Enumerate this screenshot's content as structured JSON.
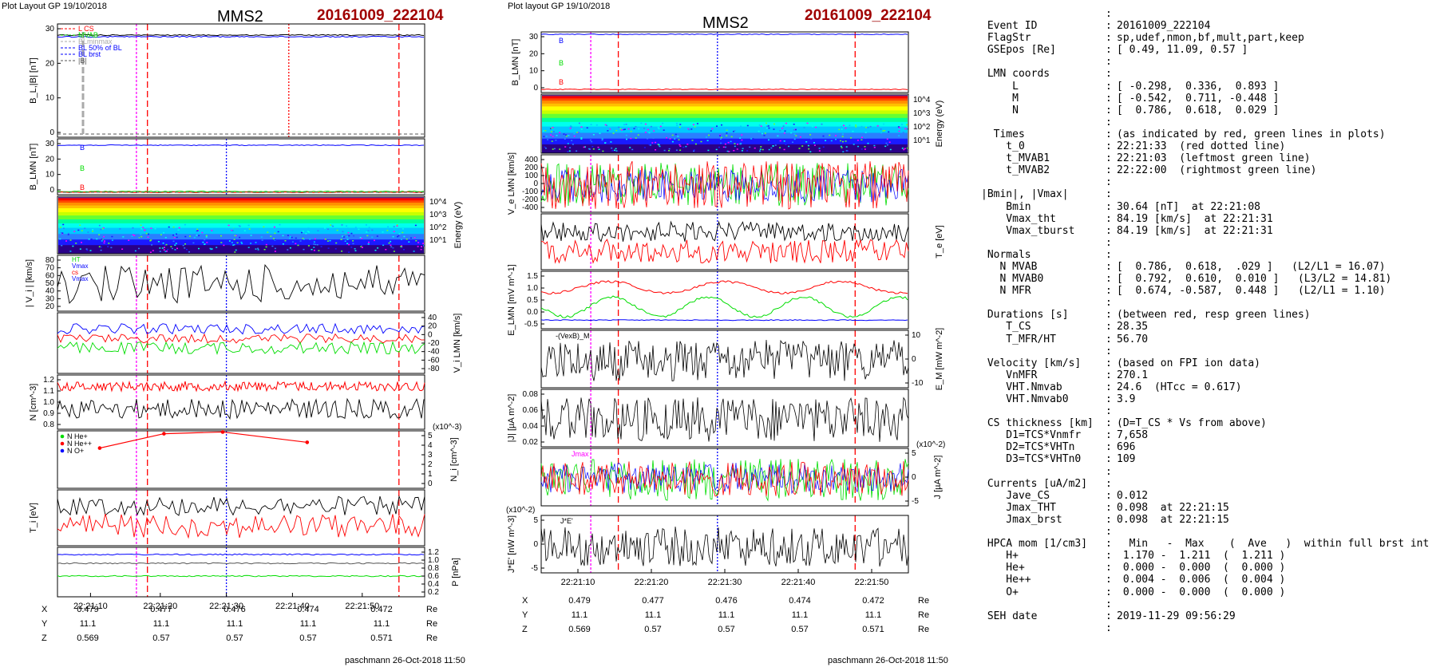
{
  "left_figure": {
    "header": "Plot Layout GP 19/10/2018",
    "spacecraft": "MMS2",
    "event": "20161009_222104",
    "footer": "paschmann 26-Oct-2018 11:50",
    "time_ticks": [
      "22:21:10",
      "22:21:20",
      "22:21:30",
      "22:21:40",
      "22:21:50"
    ],
    "ephem": {
      "rows": [
        {
          "name": "X",
          "values": [
            "0.479",
            "0.477",
            "0.476",
            "0.474",
            "0.472"
          ],
          "unit": "Re"
        },
        {
          "name": "Y",
          "values": [
            "11.1",
            "11.1",
            "11.1",
            "11.1",
            "11.1"
          ],
          "unit": "Re"
        },
        {
          "name": "Z",
          "values": [
            "0.569",
            "0.57",
            "0.57",
            "0.57",
            "0.571"
          ],
          "unit": "Re"
        }
      ]
    }
  },
  "right_figure": {
    "header": "Plot layout GP 19/10/2018",
    "spacecraft": "MMS2",
    "event": "20161009_222104",
    "footer": "paschmann 26-Oct-2018 11:50",
    "time_ticks": [
      "22:21:10",
      "22:21:20",
      "22:21:30",
      "22:21:40",
      "22:21:50"
    ],
    "ephem": {
      "rows": [
        {
          "name": "X",
          "values": [
            "0.479",
            "0.477",
            "0.476",
            "0.474",
            "0.472"
          ],
          "unit": "Re"
        },
        {
          "name": "Y",
          "values": [
            "11.1",
            "11.1",
            "11.1",
            "11.1",
            "11.1"
          ],
          "unit": "Re"
        },
        {
          "name": "Z",
          "values": [
            "0.569",
            "0.57",
            "0.57",
            "0.57",
            "0.571"
          ],
          "unit": "Re"
        }
      ]
    }
  },
  "colors": {
    "red": "#ff0000",
    "green": "#00dd00",
    "blue": "#0000ff",
    "magenta": "#ff00ff",
    "black": "#000000",
    "title_red": "#a00000"
  },
  "chart_data": [
    {
      "type": "line",
      "panel": "left-1",
      "ylabel": "B_L,|B| [nT]",
      "ylim": [
        0,
        32
      ],
      "yticks": [
        "30",
        "20",
        "10",
        "0"
      ],
      "legend": [
        "L CS",
        "MVAB",
        "BLminmax",
        "BL 50% of BL",
        "BL brst",
        "|B|"
      ],
      "series": [
        {
          "name": "|B|",
          "level": 31
        },
        {
          "name": "B_L",
          "level": 30.6
        }
      ]
    },
    {
      "type": "line",
      "panel": "left-2",
      "ylabel": "B_LMN [nT]",
      "ylim": [
        -2,
        32
      ],
      "yticks": [
        "30",
        "20",
        "10",
        "0"
      ],
      "series": [
        {
          "name": "B_L",
          "level": 30
        },
        {
          "name": "B_M",
          "level": 0.3
        },
        {
          "name": "B_N",
          "level": 0
        }
      ]
    },
    {
      "type": "heatmap",
      "panel": "left-3",
      "ylabel": "Energy (eV)",
      "yticks": [
        "10^4",
        "10^3",
        "10^2",
        "10^1"
      ]
    },
    {
      "type": "line",
      "panel": "left-4",
      "ylabel": "| V_i | [km/s]",
      "ylim": [
        10,
        82
      ],
      "yticks": [
        "80",
        "70",
        "60",
        "50",
        "40",
        "30",
        "20"
      ],
      "legend": [
        "HT",
        "Vmax",
        "cs",
        "Vmax"
      ],
      "series": [
        {
          "name": "|Vi|",
          "range": [
            20,
            70
          ]
        }
      ]
    },
    {
      "type": "line",
      "panel": "left-5",
      "ylabel": "V_i LMN [km/s]",
      "ylim": [
        -82,
        42
      ],
      "yticks": [
        "40",
        "20",
        "0",
        "-20",
        "-40",
        "-60",
        "-80"
      ],
      "series": [
        {
          "name": "V_L",
          "range": [
            0,
            20
          ]
        },
        {
          "name": "V_M",
          "range": [
            -20,
            20
          ]
        },
        {
          "name": "V_N",
          "range": [
            -40,
            -5
          ]
        }
      ]
    },
    {
      "type": "line",
      "panel": "left-6",
      "ylabel": "N [cm^-3]",
      "ylim": [
        0.78,
        1.28
      ],
      "yticks": [
        "1.2",
        "1.1",
        "1.0",
        "0.9",
        "0.8"
      ],
      "series": [
        {
          "name": "Ne",
          "range": [
            1.15,
            1.25
          ]
        },
        {
          "name": "Ni",
          "range": [
            0.88,
            1.05
          ]
        }
      ]
    },
    {
      "type": "line",
      "panel": "left-7",
      "ylabel": "N_i [cm^-3]",
      "unit_note": "(x10^-3)",
      "ylim": [
        0,
        6
      ],
      "yticks": [
        "5",
        "4",
        "3",
        "2",
        "1",
        "0"
      ],
      "legend": [
        "N He+",
        "N He++",
        "N O+"
      ],
      "series": [
        {
          "name": "N He++",
          "x": [
            "22:21:09",
            "22:21:18",
            "22:21:30",
            "22:21:41"
          ],
          "y": [
            4.0,
            5.0,
            5.0,
            4.4
          ]
        }
      ]
    },
    {
      "type": "line",
      "panel": "left-8",
      "ylabel": "T_i [eV]",
      "series": [
        {
          "name": "T_i (black)",
          "range": [
            0.5,
            0.9
          ]
        },
        {
          "name": "T_i (red)",
          "range": [
            0.15,
            0.5
          ]
        }
      ]
    },
    {
      "type": "line",
      "panel": "left-9",
      "ylabel": "P [nPa]",
      "ylim": [
        0.2,
        1.2
      ],
      "yticks": [
        "1.2",
        "1.0",
        "0.8",
        "0.6",
        "0.4",
        "0.2"
      ],
      "series": [
        {
          "name": "P_t",
          "level": 1.15
        },
        {
          "name": "P_B",
          "level": 0.95
        },
        {
          "name": "P_e",
          "level": 0.6
        }
      ]
    },
    {
      "type": "line",
      "panel": "right-1",
      "ylabel": "B_LMN [nT]",
      "ylim": [
        -2,
        32
      ],
      "yticks": [
        "30",
        "20",
        "10",
        "0"
      ],
      "series": [
        {
          "name": "B_L",
          "level": 30
        },
        {
          "name": "B_M",
          "level": 0.3
        },
        {
          "name": "B_N",
          "level": 0
        }
      ]
    },
    {
      "type": "heatmap",
      "panel": "right-2",
      "ylabel": "Energy (eV)",
      "yticks": [
        "10^4",
        "10^3",
        "10^2",
        "10^1"
      ]
    },
    {
      "type": "line",
      "panel": "right-3",
      "ylabel": "V_e LMN [km/s]",
      "ylim": [
        -400,
        400
      ],
      "yticks": [
        "400",
        "200",
        "100",
        "0",
        "-100",
        "-200",
        "-400"
      ],
      "series": [
        {
          "name": "V_L",
          "range": [
            -150,
            150
          ]
        },
        {
          "name": "V_M",
          "range": [
            -100,
            100
          ]
        },
        {
          "name": "V_N",
          "range": [
            -200,
            200
          ]
        }
      ]
    },
    {
      "type": "line",
      "panel": "right-4",
      "ylabel": "T_e [eV]",
      "series": [
        {
          "name": "T_e para",
          "range": [
            0.55,
            0.9
          ]
        },
        {
          "name": "T_e perp",
          "range": [
            0.1,
            0.55
          ]
        }
      ]
    },
    {
      "type": "line",
      "panel": "right-5",
      "ylabel": "E_LMN [mV m^-1]",
      "ylim": [
        -0.5,
        1.6
      ],
      "yticks": [
        "1.5",
        "1.0",
        "0.5",
        "0.0",
        "-0.5"
      ],
      "series": [
        {
          "name": "E_L",
          "level": 0
        },
        {
          "name": "E_M",
          "range": [
            -0.1,
            0.7
          ]
        },
        {
          "name": "E_N",
          "range": [
            0.7,
            1.4
          ]
        }
      ]
    },
    {
      "type": "line",
      "panel": "right-6",
      "ylabel": "E_M [mW m^-2]",
      "legend": [
        "-(VexB)_M",
        "E_M"
      ],
      "yticks": [
        "10",
        "0",
        "-10"
      ],
      "series": [
        {
          "name": "E_M",
          "range": [
            -12,
            12
          ]
        }
      ]
    },
    {
      "type": "line",
      "panel": "right-7",
      "ylabel": "|J| [µA m^-2]",
      "ylim": [
        0,
        0.09
      ],
      "yticks": [
        "0.08",
        "0.06",
        "0.04",
        "0.02"
      ],
      "series": [
        {
          "name": "|J|",
          "range": [
            0.005,
            0.08
          ]
        }
      ]
    },
    {
      "type": "line",
      "panel": "right-8",
      "ylabel": "J [µA m^-2]",
      "unit_note": "(x10^-2)",
      "ylim": [
        -7,
        7
      ],
      "yticks": [
        "5",
        "0",
        "-5"
      ],
      "legend": [
        "Jmax"
      ],
      "series": [
        {
          "name": "J_L",
          "range": [
            -3,
            3
          ]
        },
        {
          "name": "J_M",
          "range": [
            -5,
            5
          ]
        },
        {
          "name": "J_N",
          "range": [
            -4,
            4
          ]
        }
      ]
    },
    {
      "type": "line",
      "panel": "right-9",
      "ylabel": "J*E' [nW m^-3]",
      "unit_note": "(x10^-2)",
      "ylim": [
        -8,
        8
      ],
      "yticks": [
        "5",
        "0",
        "-5"
      ],
      "legend": [
        "J*E'"
      ],
      "series": [
        {
          "name": "J*E'",
          "range": [
            -5,
            5
          ]
        }
      ]
    }
  ],
  "info_panel": {
    "lines": [
      {
        "k": "",
        "v": ""
      },
      {
        "k": " Event ID",
        "v": "20161009_222104"
      },
      {
        "k": " FlagStr",
        "v": "sp,udef,nmon,bf,mult,part,keep"
      },
      {
        "k": " GSEpos [Re]",
        "v": "[ 0.49, 11.09, 0.57 ]"
      },
      {
        "k": "",
        "v": ""
      },
      {
        "k": " LMN coords",
        "v": ""
      },
      {
        "k": "     L",
        "v": "[ -0.298,  0.336,  0.893 ]"
      },
      {
        "k": "     M",
        "v": "[ -0.542,  0.711, -0.448 ]"
      },
      {
        "k": "     N",
        "v": "[  0.786,  0.618,  0.029 ]"
      },
      {
        "k": "",
        "v": ""
      },
      {
        "k": "  Times",
        "v": "(as indicated by red, green lines in plots)"
      },
      {
        "k": "    t_0",
        "v": "22:21:33  (red dotted line)"
      },
      {
        "k": "    t_MVAB1",
        "v": "22:21:03  (leftmost green line)"
      },
      {
        "k": "    t_MVAB2",
        "v": "22:22:00  (rightmost green line)"
      },
      {
        "k": "",
        "v": ""
      },
      {
        "k": "|Bmin|, |Vmax|",
        "v": ""
      },
      {
        "k": "    Bmin",
        "v": "30.64 [nT]  at 22:21:08"
      },
      {
        "k": "    Vmax_tht",
        "v": "84.19 [km/s]  at 22:21:31"
      },
      {
        "k": "    Vmax_tburst",
        "v": "84.19 [km/s]  at 22:21:31"
      },
      {
        "k": "",
        "v": ""
      },
      {
        "k": " Normals",
        "v": ""
      },
      {
        "k": "   N MVAB",
        "v": "[  0.786,  0.618,  .029 ]   (L2/L1 = 16.07)"
      },
      {
        "k": "   N MVAB0",
        "v": "[  0.792,  0.610,  0.010 ]   (L3/L2 = 14.81)"
      },
      {
        "k": "   N MFR",
        "v": "[  0.674, -0.587,  0.448 ]   (L2/L1 = 1.10)"
      },
      {
        "k": "",
        "v": ""
      },
      {
        "k": " Durations [s]",
        "v": "(between red, resp green lines)"
      },
      {
        "k": "    T_CS",
        "v": "28.35"
      },
      {
        "k": "    T_MFR/HT",
        "v": "56.70"
      },
      {
        "k": "",
        "v": ""
      },
      {
        "k": " Velocity [km/s]",
        "v": "(based on FPI ion data)"
      },
      {
        "k": "    VnMFR",
        "v": "270.1"
      },
      {
        "k": "    VHT.Nmvab",
        "v": "24.6  (HTcc = 0.617)"
      },
      {
        "k": "    VHT.Nmvab0",
        "v": "3.9"
      },
      {
        "k": "",
        "v": ""
      },
      {
        "k": " CS thickness [km]",
        "v": "(D=T_CS * Vs from above)"
      },
      {
        "k": "    D1=TCS*Vnmfr",
        "v": "7,658"
      },
      {
        "k": "    D2=TCS*VHTn",
        "v": "696"
      },
      {
        "k": "    D3=TCS*VHTn0",
        "v": "109"
      },
      {
        "k": "",
        "v": ""
      },
      {
        "k": " Currents [uA/m2]",
        "v": ""
      },
      {
        "k": "    Jave_CS",
        "v": "0.012"
      },
      {
        "k": "    Jmax_THT",
        "v": "0.098  at 22:21:15"
      },
      {
        "k": "    Jmax_brst",
        "v": "0.098  at 22:21:15"
      },
      {
        "k": "",
        "v": ""
      },
      {
        "k": " HPCA mom [1/cm3]",
        "v": "  Min   -  Max    (  Ave   )  within full brst int"
      },
      {
        "k": "    H+",
        "v": " 1.170 -  1.211  (  1.211 )"
      },
      {
        "k": "    He+",
        "v": " 0.000 -  0.000  (  0.000 )"
      },
      {
        "k": "    He++",
        "v": " 0.004 -  0.006  (  0.004 )"
      },
      {
        "k": "    O+",
        "v": " 0.000 -  0.000  (  0.000 )"
      },
      {
        "k": "",
        "v": ""
      },
      {
        "k": " SEH date",
        "v": "2019-11-29 09:56:29"
      },
      {
        "k": "",
        "v": ""
      }
    ]
  }
}
